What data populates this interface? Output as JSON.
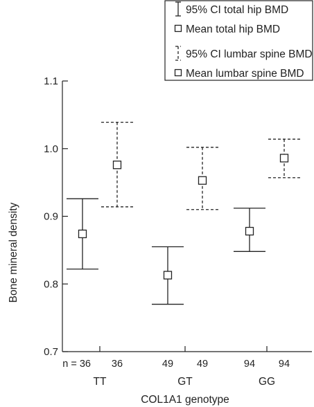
{
  "chart_data": {
    "type": "errorbar",
    "xlabel": "COL1A1 genotype",
    "ylabel": "Bone mineral density",
    "ylim": [
      0.7,
      1.1
    ],
    "yticks": [
      "0.7",
      "0.8",
      "0.9",
      "1.0",
      "1.1"
    ],
    "categories": [
      "TT",
      "GT",
      "GG"
    ],
    "n_prefix": "n = ",
    "series": [
      {
        "name": "Total hip BMD",
        "style": "solid",
        "n": [
          "36",
          "49",
          "94"
        ],
        "mean": [
          0.874,
          0.813,
          0.878
        ],
        "ci_low": [
          0.822,
          0.77,
          0.848
        ],
        "ci_high": [
          0.926,
          0.855,
          0.912
        ]
      },
      {
        "name": "Lumbar spine BMD",
        "style": "dashed",
        "n": [
          "36",
          "49",
          "94"
        ],
        "mean": [
          0.976,
          0.953,
          0.986
        ],
        "ci_low": [
          0.914,
          0.91,
          0.957
        ],
        "ci_high": [
          1.039,
          1.002,
          1.014
        ]
      }
    ],
    "legend": {
      "position": "top-right",
      "items": [
        {
          "icon": "ci-solid",
          "label": "95% CI total hip BMD"
        },
        {
          "icon": "mean-box",
          "label": "Mean total hip BMD"
        },
        {
          "icon": "ci-dashed",
          "label": "95% CI lumbar spine BMD"
        },
        {
          "icon": "mean-box",
          "label": "Mean lumbar spine BMD"
        }
      ]
    },
    "grid": false
  }
}
